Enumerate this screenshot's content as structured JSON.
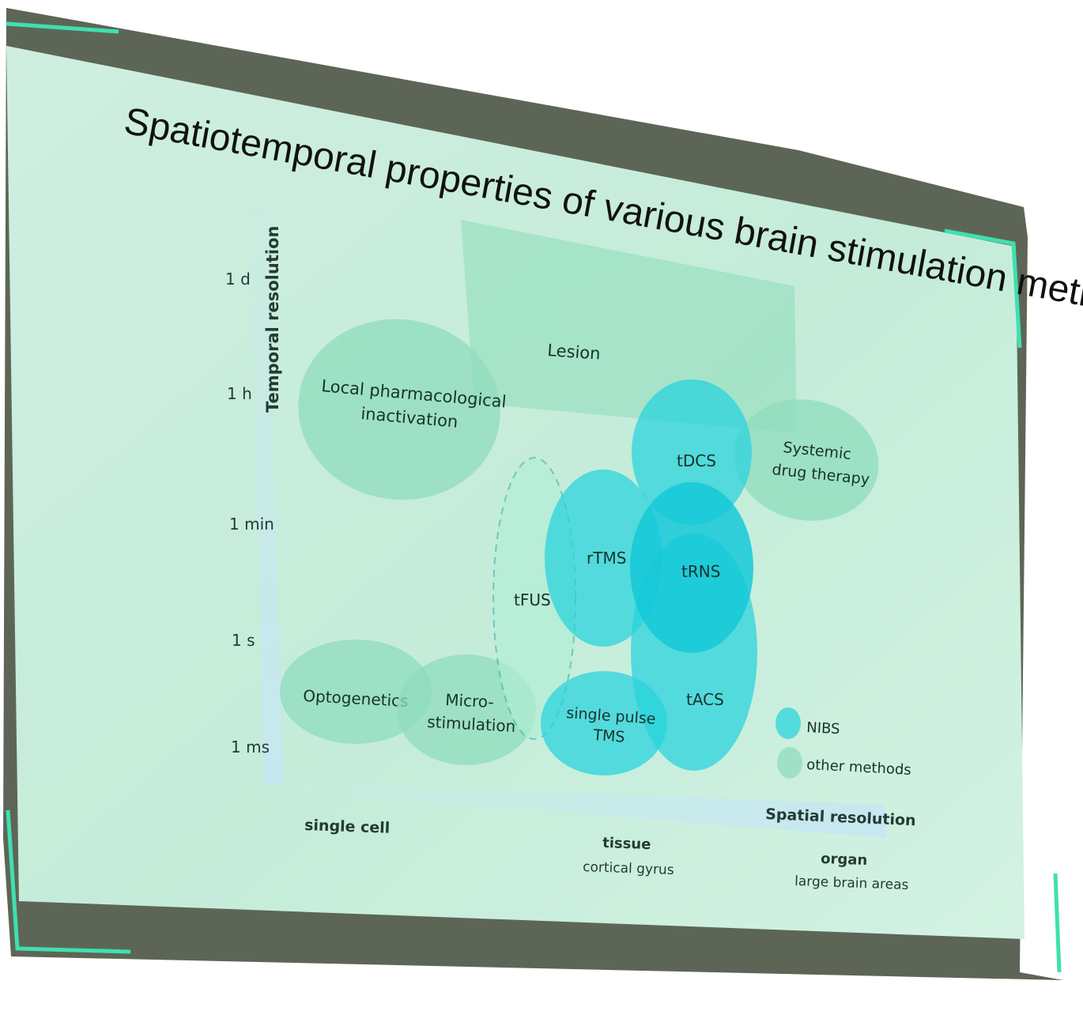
{
  "slide": {
    "title": "Spatiotemporal properties of various brain stimulation methods"
  },
  "axes": {
    "y_label": "Temporal resolution",
    "y_ticks": [
      "1 d",
      "1 h",
      "1 min",
      "1 s",
      "1 ms"
    ],
    "x_label": "Spatial resolution",
    "x_ticks": [
      {
        "main": "single cell",
        "sub": ""
      },
      {
        "main": "tissue",
        "sub": "cortical gyrus"
      },
      {
        "main": "organ",
        "sub": "large brain areas"
      }
    ]
  },
  "methods": {
    "lesion": "Lesion",
    "local_pharm_1": "Local pharmacological",
    "local_pharm_2": "inactivation",
    "systemic_1": "Systemic",
    "systemic_2": "drug therapy",
    "tdcs": "tDCS",
    "rtms": "rTMS",
    "trns": "tRNS",
    "tfus": "tFUS",
    "tacs": "tACS",
    "optogenetics": "Optogenetics",
    "micro_1": "Micro-",
    "micro_2": "stimulation",
    "spt_1": "single pulse",
    "spt_2": "TMS"
  },
  "legend": {
    "nibs": "NIBS",
    "other": "other methods"
  },
  "colors": {
    "nibs": "#25d3dd",
    "other_methods": "#8fdcbd",
    "screen_background": "#c6ecd8",
    "frame": "#5d6656",
    "accent": "#3fe0b0"
  }
}
